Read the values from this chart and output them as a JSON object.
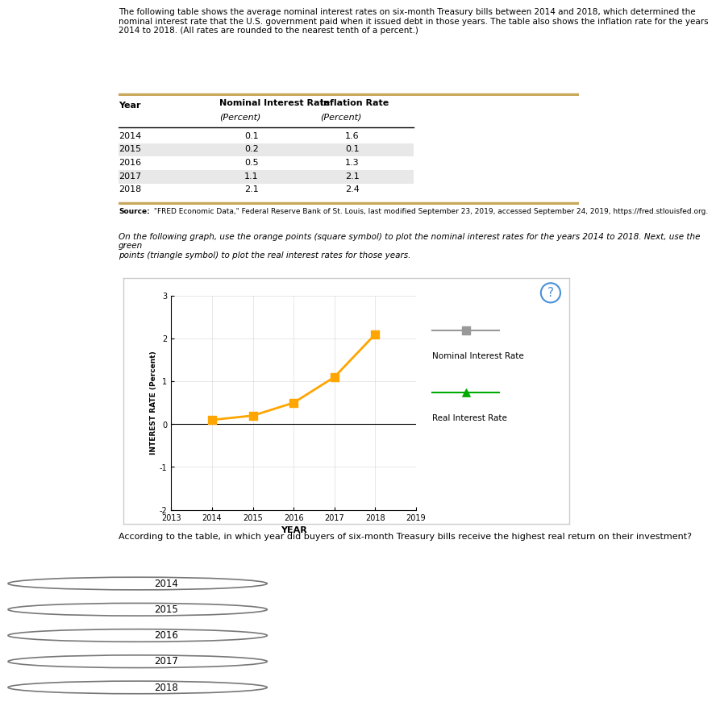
{
  "intro_text": "The following table shows the average nominal interest rates on six-month Treasury bills between 2014 and 2018, which determined the nominal interest rate that the U.S. government paid when it issued debt in those years. The table also shows the inflation rate for the years 2014 to 2018. (All rates are rounded to the nearest tenth of a percent.)",
  "source_text": "Source: \"FRED Economic Data,\" Federal Reserve Bank of St. Louis, last modified September 23, 2019, accessed September 24, 2019, https://fred.stlouisfed.org.",
  "graph_instruction_1": "On the following graph, use the orange points (square symbol) to plot the ",
  "graph_instruction_bold": "nominal",
  "graph_instruction_2": " interest rates for the years 2014 to 2018. Next, use the green points (triangle symbol) to plot the ",
  "graph_instruction_real": "real",
  "graph_instruction_3": " interest rates for those years.",
  "years": [
    2014,
    2015,
    2016,
    2017,
    2018
  ],
  "nominal_rates": [
    0.1,
    0.2,
    0.5,
    1.1,
    2.1
  ],
  "xlabel": "YEAR",
  "ylabel": "INTEREST RATE (Percent)",
  "ylim": [
    -2.0,
    3.0
  ],
  "xlim": [
    2013,
    2019
  ],
  "yticks": [
    -2.0,
    -1.0,
    0,
    1.0,
    2.0,
    3.0
  ],
  "xticks": [
    2013,
    2014,
    2015,
    2016,
    2017,
    2018,
    2019
  ],
  "nominal_color": "#FFA500",
  "real_color": "#00AA00",
  "legend_nominal_color": "#999999",
  "question_text": "According to the table, in which year did buyers of six-month Treasury bills receive the highest real return on their investment?",
  "choices": [
    "2014",
    "2015",
    "2016",
    "2017",
    "2018"
  ],
  "divider_color": "#C8A85A",
  "table_row_alt_color": "#E8E8E8",
  "table_row_color": "#FFFFFF"
}
